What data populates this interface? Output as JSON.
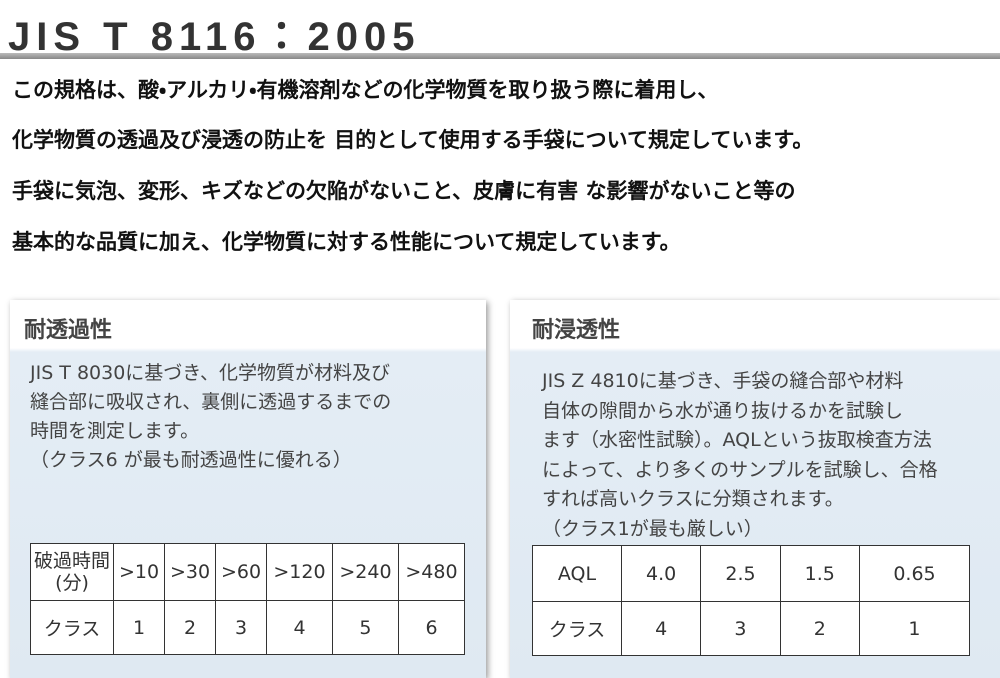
{
  "header": {
    "title": "JIS T 8116：2005"
  },
  "intro": {
    "lines": [
      "この規格は、酸・アルカリ・有機溶剤などの化学物質を取り扱う際に着用し、",
      "化学物質の透過及び浸透の防止を 目的として使用する手袋について規定しています。",
      "手袋に気泡、変形、キズなどの欠陥がないこと、皮膚に有害 な影響がないこと等の",
      "基本的な品質に加え、化学物質に対する性能について規定しています。"
    ]
  },
  "panels": [
    {
      "heading": "耐透過性",
      "lines": [
        "JIS T 8030に基づき、化学物質が材料及び",
        "縫合部に吸収され、裏側に透過するまでの",
        "時間を測定します。",
        "（クラス6 が最も耐透過性に優れる）"
      ],
      "table": {
        "rows": [
          [
            [
              "破過時間",
              "(分)"
            ],
            ">10",
            ">30",
            ">60",
            ">120",
            ">240",
            ">480"
          ],
          [
            "クラス",
            "1",
            "2",
            "3",
            "4",
            "5",
            "6"
          ]
        ]
      }
    },
    {
      "heading": "耐浸透性",
      "lines": [
        "JIS Z 4810に基づき、手袋の縫合部や材料",
        "自体の隙間から水が通り抜けるかを試験し",
        "ます（水密性試験）。AQLという抜取検査方法",
        "によって、より多くのサンプルを試験し、合格",
        "すれば高いクラスに分類されます。",
        "（クラス1が最も厳しい）"
      ],
      "table": {
        "rows": [
          [
            "AQL",
            "4.0",
            "2.5",
            "1.5",
            "0.65"
          ],
          [
            "クラス",
            "4",
            "3",
            "2",
            "1"
          ]
        ]
      }
    }
  ]
}
